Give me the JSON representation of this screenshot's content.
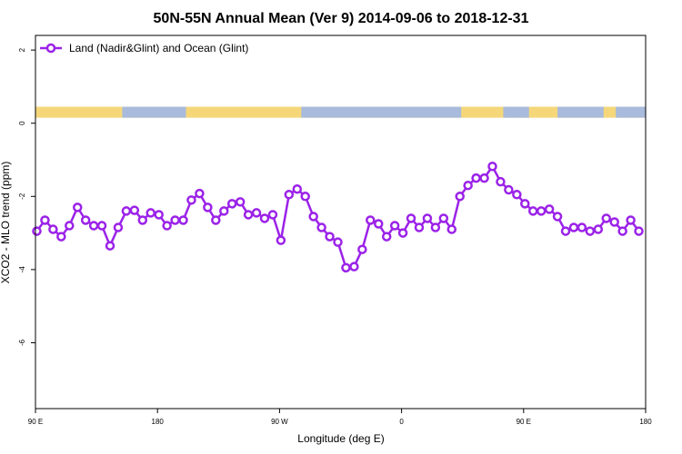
{
  "chart_data": {
    "type": "line",
    "title": "50N-55N Annual Mean (Ver 9)   2014-09-06 to 2018-12-31",
    "xlabel": "Longitude (deg E)",
    "ylabel": "XCO2 - MLO trend (ppm)",
    "x_ticks": [
      {
        "value": 90,
        "label": "90 E"
      },
      {
        "value": 180,
        "label": "180"
      },
      {
        "value": 270,
        "label": "90 W"
      },
      {
        "value": 360,
        "label": "0"
      },
      {
        "value": 450,
        "label": "90 E"
      },
      {
        "value": 540,
        "label": "180"
      }
    ],
    "y_ticks": [
      {
        "value": 2,
        "label": "2"
      },
      {
        "value": 0,
        "label": "0"
      },
      {
        "value": -2,
        "label": "-2"
      },
      {
        "value": -4,
        "label": "-4"
      },
      {
        "value": -6,
        "label": "-6"
      }
    ],
    "xlim": [
      90,
      540
    ],
    "ylim": [
      -7.8,
      2.4
    ],
    "legend_position": "top-left",
    "land_strip": {
      "y_range": [
        0.15,
        0.45
      ],
      "land_color": "#f5d77a",
      "ocean_color": "#a9bbdc"
    },
    "series": [
      {
        "name": "Land (Nadir&Glint) and Ocean (Glint)",
        "color": "#9b22e8",
        "x": [
          91,
          97,
          103,
          109,
          115,
          121,
          127,
          133,
          139,
          145,
          151,
          157,
          163,
          169,
          175,
          181,
          187,
          193,
          199,
          205,
          211,
          217,
          223,
          229,
          235,
          241,
          247,
          253,
          259,
          265,
          271,
          277,
          283,
          289,
          295,
          301,
          307,
          313,
          319,
          325,
          331,
          337,
          343,
          349,
          355,
          361,
          367,
          373,
          379,
          385,
          391,
          397,
          403,
          409,
          415,
          421,
          427,
          433,
          439,
          445,
          451,
          457,
          463,
          469,
          475,
          481,
          487,
          493,
          499,
          505,
          511,
          517,
          523,
          529,
          535
        ],
        "values": [
          -2.95,
          -2.65,
          -2.9,
          -3.1,
          -2.8,
          -2.3,
          -2.65,
          -2.8,
          -2.8,
          -3.35,
          -2.85,
          -2.4,
          -2.38,
          -2.65,
          -2.45,
          -2.5,
          -2.8,
          -2.65,
          -2.65,
          -2.1,
          -1.92,
          -2.3,
          -2.65,
          -2.4,
          -2.2,
          -2.15,
          -2.5,
          -2.45,
          -2.6,
          -2.5,
          -3.2,
          -1.95,
          -1.8,
          -2.0,
          -2.55,
          -2.85,
          -3.1,
          -3.25,
          -3.95,
          -3.92,
          -3.45,
          -2.65,
          -2.75,
          -3.1,
          -2.8,
          -3.0,
          -2.6,
          -2.85,
          -2.6,
          -2.85,
          -2.6,
          -2.9,
          -2.0,
          -1.7,
          -1.5,
          -1.5,
          -1.18,
          -1.6,
          -1.82,
          -1.95,
          -2.2,
          -2.4,
          -2.4,
          -2.35,
          -2.55,
          -2.95,
          -2.85,
          -2.85,
          -2.95,
          -2.9,
          -2.6,
          -2.7,
          -2.95,
          -2.65,
          -2.95
        ]
      }
    ]
  }
}
